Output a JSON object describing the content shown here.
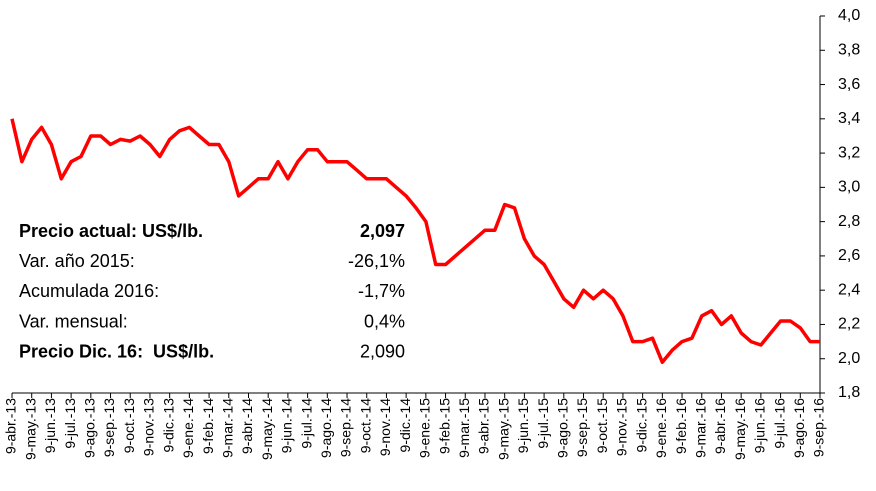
{
  "chart_data": {
    "type": "line",
    "color": "#ff0000",
    "categories": [
      "9-abr.-13",
      null,
      "9-may.-13",
      null,
      "9-jun.-13",
      null,
      "9-jul.-13",
      null,
      "9-ago.-13",
      null,
      "9-sep.-13",
      null,
      "9-oct.-13",
      null,
      "9-nov.-13",
      null,
      "9-dic.-13",
      null,
      "9-ene.-14",
      null,
      "9-feb.-14",
      null,
      "9-mar.-14",
      null,
      "9-abr.-14",
      null,
      "9-may.-14",
      null,
      "9-jun.-14",
      null,
      "9-jul.-14",
      null,
      "9-ago.-14",
      null,
      "9-sep.-14",
      null,
      "9-oct.-14",
      null,
      "9-nov.-14",
      null,
      "9-dic.-14",
      null,
      "9-ene.-15",
      null,
      "9-feb.-15",
      null,
      "9-mar.-15",
      null,
      "9-abr.-15",
      null,
      "9-may.-15",
      null,
      "9-jun.-15",
      null,
      "9-jul.-15",
      null,
      "9-ago.-15",
      null,
      "9-sep.-15",
      null,
      "9-oct.-15",
      null,
      "9-nov.-15",
      null,
      "9-dic.-15",
      null,
      "9-ene.-16",
      null,
      "9-feb.-16",
      null,
      "9-mar.-16",
      null,
      "9-abr.-16",
      null,
      "9-may.-16",
      null,
      "9-jun.-16",
      null,
      "9-jul.-16",
      null,
      "9-ago.-16",
      null,
      "9-sep.-16"
    ],
    "values": [
      3.4,
      3.15,
      3.28,
      3.35,
      3.25,
      3.05,
      3.15,
      3.18,
      3.3,
      3.3,
      3.25,
      3.28,
      3.27,
      3.3,
      3.25,
      3.18,
      3.28,
      3.33,
      3.35,
      3.3,
      3.25,
      3.25,
      3.15,
      2.95,
      3.0,
      3.05,
      3.05,
      3.15,
      3.05,
      3.15,
      3.22,
      3.22,
      3.15,
      3.15,
      3.15,
      3.1,
      3.05,
      3.05,
      3.05,
      3.0,
      2.95,
      2.88,
      2.8,
      2.55,
      2.55,
      2.6,
      2.65,
      2.7,
      2.75,
      2.75,
      2.9,
      2.88,
      2.7,
      2.6,
      2.55,
      2.45,
      2.35,
      2.3,
      2.4,
      2.35,
      2.4,
      2.35,
      2.25,
      2.1,
      2.1,
      2.12,
      1.98,
      2.05,
      2.1,
      2.12,
      2.25,
      2.28,
      2.2,
      2.25,
      2.15,
      2.1,
      2.08,
      2.15,
      2.22,
      2.22,
      2.18,
      2.1,
      2.1
    ],
    "ylim": [
      1.8,
      4.0
    ],
    "yticks": [
      {
        "value": 1.8,
        "label": "1,8"
      },
      {
        "value": 2.0,
        "label": "2,0"
      },
      {
        "value": 2.2,
        "label": "2,2"
      },
      {
        "value": 2.4,
        "label": "2,4"
      },
      {
        "value": 2.6,
        "label": "2,6"
      },
      {
        "value": 2.8,
        "label": "2,8"
      },
      {
        "value": 3.0,
        "label": "3,0"
      },
      {
        "value": 3.2,
        "label": "3,2"
      },
      {
        "value": 3.4,
        "label": "3,4"
      },
      {
        "value": 3.6,
        "label": "3,6"
      },
      {
        "value": 3.8,
        "label": "3,8"
      },
      {
        "value": 4.0,
        "label": "4,0"
      }
    ],
    "stats": [
      {
        "label": "Precio actual: US$/lb.",
        "value": "2,097"
      },
      {
        "label": "Var. año 2015:",
        "value": "-26,1%"
      },
      {
        "label": "Acumulada 2016:",
        "value": "-1,7%"
      },
      {
        "label": "Var. mensual:",
        "value": "0,4%"
      },
      {
        "label": "Precio Dic. 16:  US$/lb.",
        "value": "2,090"
      }
    ]
  }
}
